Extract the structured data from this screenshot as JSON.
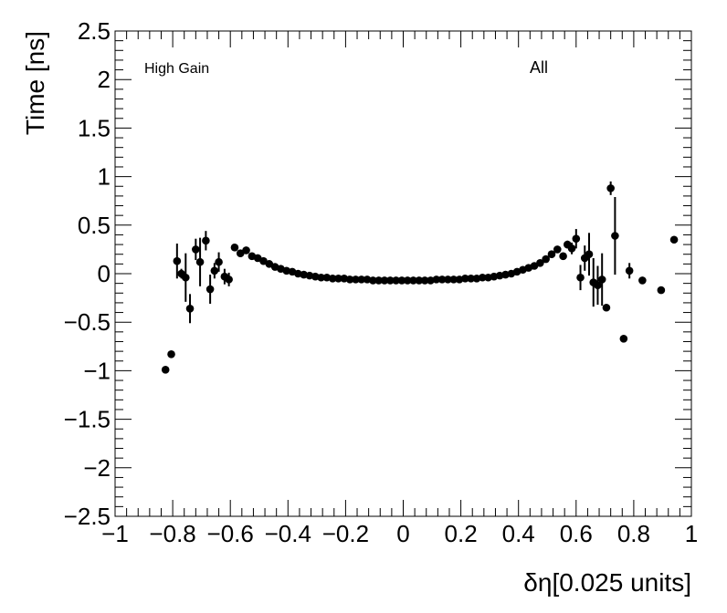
{
  "chart_data": {
    "type": "scatter",
    "title": "",
    "xlabel": "δη[0.025 units]",
    "ylabel": "Time [ns]",
    "xlim": [
      -1,
      1
    ],
    "ylim": [
      -2.5,
      2.5
    ],
    "xticks": [
      "−1",
      "−0.8",
      "−0.6",
      "−0.4",
      "−0.2",
      "0",
      "0.2",
      "0.4",
      "0.6",
      "0.8",
      "1"
    ],
    "yticks": [
      "2.5",
      "2",
      "1.5",
      "1",
      "0.5",
      "0",
      "−0.5",
      "−1",
      "−1.5",
      "−2",
      "−2.5"
    ],
    "annotations": {
      "left": "High Gain",
      "right": "All"
    },
    "grid": false,
    "series": [
      {
        "points": [
          [
            -0.825,
            -0.99,
            0.02
          ],
          [
            -0.805,
            -0.83,
            0.02
          ],
          [
            -0.785,
            0.13,
            0.18
          ],
          [
            -0.77,
            0.0,
            0.05
          ],
          [
            -0.755,
            -0.04,
            0.25
          ],
          [
            -0.74,
            -0.36,
            0.15
          ],
          [
            -0.72,
            0.25,
            0.11
          ],
          [
            -0.705,
            0.12,
            0.25
          ],
          [
            -0.685,
            0.34,
            0.1
          ],
          [
            -0.67,
            -0.16,
            0.15
          ],
          [
            -0.655,
            0.03,
            0.08
          ],
          [
            -0.64,
            0.12,
            0.1
          ],
          [
            -0.62,
            -0.03,
            0.08
          ],
          [
            -0.605,
            -0.06,
            0.07
          ],
          [
            -0.585,
            0.27,
            0.02
          ],
          [
            -0.565,
            0.21,
            0.02
          ],
          [
            -0.545,
            0.24,
            0.02
          ],
          [
            -0.525,
            0.18,
            0.01
          ],
          [
            -0.505,
            0.16,
            0.01
          ],
          [
            -0.485,
            0.13,
            0.01
          ],
          [
            -0.465,
            0.1,
            0.01
          ],
          [
            -0.445,
            0.07,
            0.01
          ],
          [
            -0.425,
            0.05,
            0.01
          ],
          [
            -0.405,
            0.03,
            0.01
          ],
          [
            -0.385,
            0.02,
            0.01
          ],
          [
            -0.365,
            0.0,
            0.01
          ],
          [
            -0.345,
            -0.01,
            0.01
          ],
          [
            -0.325,
            -0.02,
            0.01
          ],
          [
            -0.305,
            -0.03,
            0.01
          ],
          [
            -0.285,
            -0.04,
            0.01
          ],
          [
            -0.265,
            -0.04,
            0.01
          ],
          [
            -0.245,
            -0.05,
            0.01
          ],
          [
            -0.225,
            -0.05,
            0.01
          ],
          [
            -0.205,
            -0.05,
            0.01
          ],
          [
            -0.185,
            -0.06,
            0.01
          ],
          [
            -0.165,
            -0.06,
            0.01
          ],
          [
            -0.145,
            -0.06,
            0.01
          ],
          [
            -0.125,
            -0.06,
            0.01
          ],
          [
            -0.105,
            -0.07,
            0.01
          ],
          [
            -0.085,
            -0.07,
            0.01
          ],
          [
            -0.065,
            -0.07,
            0.01
          ],
          [
            -0.045,
            -0.07,
            0.01
          ],
          [
            -0.025,
            -0.07,
            0.01
          ],
          [
            -0.005,
            -0.07,
            0.01
          ],
          [
            0.015,
            -0.07,
            0.01
          ],
          [
            0.035,
            -0.07,
            0.01
          ],
          [
            0.055,
            -0.07,
            0.01
          ],
          [
            0.075,
            -0.07,
            0.01
          ],
          [
            0.095,
            -0.07,
            0.01
          ],
          [
            0.115,
            -0.06,
            0.01
          ],
          [
            0.135,
            -0.06,
            0.01
          ],
          [
            0.155,
            -0.06,
            0.01
          ],
          [
            0.175,
            -0.06,
            0.01
          ],
          [
            0.195,
            -0.06,
            0.01
          ],
          [
            0.215,
            -0.05,
            0.01
          ],
          [
            0.235,
            -0.05,
            0.01
          ],
          [
            0.255,
            -0.05,
            0.01
          ],
          [
            0.275,
            -0.04,
            0.01
          ],
          [
            0.295,
            -0.04,
            0.01
          ],
          [
            0.315,
            -0.03,
            0.01
          ],
          [
            0.335,
            -0.02,
            0.01
          ],
          [
            0.355,
            -0.01,
            0.01
          ],
          [
            0.375,
            0.0,
            0.01
          ],
          [
            0.395,
            0.02,
            0.01
          ],
          [
            0.415,
            0.04,
            0.01
          ],
          [
            0.435,
            0.06,
            0.01
          ],
          [
            0.455,
            0.08,
            0.01
          ],
          [
            0.475,
            0.11,
            0.01
          ],
          [
            0.495,
            0.15,
            0.01
          ],
          [
            0.515,
            0.2,
            0.02
          ],
          [
            0.535,
            0.25,
            0.02
          ],
          [
            0.555,
            0.18,
            0.02
          ],
          [
            0.57,
            0.3,
            0.04
          ],
          [
            0.585,
            0.26,
            0.06
          ],
          [
            0.6,
            0.36,
            0.1
          ],
          [
            0.615,
            -0.04,
            0.13
          ],
          [
            0.63,
            0.16,
            0.13
          ],
          [
            0.645,
            0.2,
            0.22
          ],
          [
            0.66,
            -0.09,
            0.25
          ],
          [
            0.675,
            -0.12,
            0.2
          ],
          [
            0.69,
            -0.06,
            0.27
          ],
          [
            0.705,
            -0.35,
            0.02
          ],
          [
            0.72,
            0.88,
            0.07
          ],
          [
            0.735,
            0.39,
            0.4
          ],
          [
            0.765,
            -0.67,
            0.02
          ],
          [
            0.785,
            0.03,
            0.08
          ],
          [
            0.83,
            -0.07,
            0.02
          ],
          [
            0.895,
            -0.17,
            0.02
          ],
          [
            0.94,
            0.35,
            0.02
          ]
        ]
      }
    ]
  }
}
